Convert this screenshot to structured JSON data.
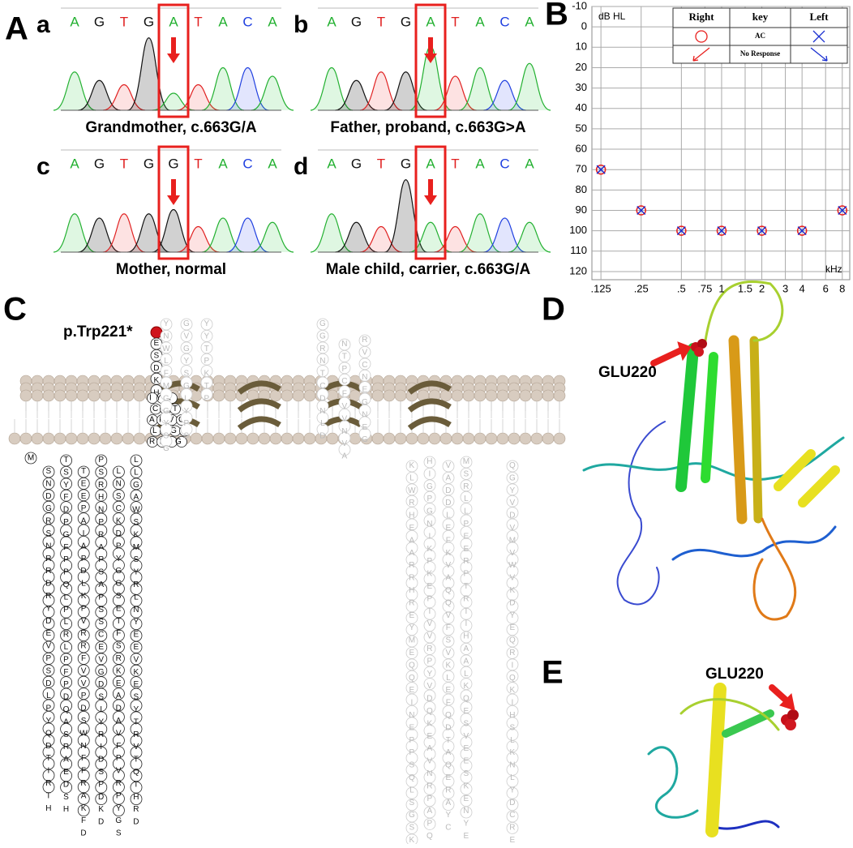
{
  "panel_labels": [
    "A",
    "B",
    "C",
    "D",
    "E"
  ],
  "sequencing": [
    {
      "label": "a",
      "bases": [
        "A",
        "G",
        "T",
        "G",
        "A",
        "T",
        "A",
        "C",
        "A"
      ],
      "caption": "Grandmother, c.663G/A"
    },
    {
      "label": "b",
      "bases": [
        "A",
        "G",
        "T",
        "G",
        "A",
        "T",
        "A",
        "C",
        "A"
      ],
      "caption": "Father, proband, c.663G>A"
    },
    {
      "label": "c",
      "bases": [
        "A",
        "G",
        "T",
        "G",
        "G",
        "T",
        "A",
        "C",
        "A"
      ],
      "caption": "Mother, normal"
    },
    {
      "label": "d",
      "bases": [
        "A",
        "G",
        "T",
        "G",
        "A",
        "T",
        "A",
        "C",
        "A"
      ],
      "caption": "Male child, carrier, c.663G/A"
    }
  ],
  "chart_data": {
    "type": "line",
    "y_label": "dB HL",
    "x_label": "kHz",
    "x_scale": "log",
    "y_inverted": true,
    "grid": true,
    "xlim": [
      0.107,
      9.1
    ],
    "xticks": [
      {
        "value": 0.125,
        "label": ".125"
      },
      {
        "value": 0.25,
        "label": ".25"
      },
      {
        "value": 0.5,
        "label": ".5"
      },
      {
        "value": 0.75,
        "label": ".75"
      },
      1,
      {
        "value": 1.5,
        "label": "1.5"
      },
      2,
      3,
      4,
      6,
      8
    ],
    "ylim": [
      -10,
      124
    ],
    "yticks": [
      -10,
      0,
      10,
      20,
      30,
      40,
      50,
      60,
      70,
      80,
      90,
      100,
      110,
      120
    ],
    "legend_key": "key",
    "legend_rows": [
      "AC",
      "No Response"
    ],
    "series": [
      {
        "name": "Right",
        "color": "#e8201e",
        "marker": "circle",
        "x": [
          0.125,
          0.25,
          0.5,
          1,
          2,
          4,
          8
        ],
        "values": [
          70,
          90,
          100,
          100,
          100,
          100,
          90
        ]
      },
      {
        "name": "Left",
        "color": "#1a2fd0",
        "marker": "x",
        "x": [
          0.125,
          0.25,
          0.5,
          1,
          2,
          4,
          8
        ],
        "values": [
          70,
          90,
          100,
          100,
          100,
          100,
          90
        ]
      }
    ]
  },
  "topology": {
    "variant": "p.Trp221*",
    "loop": "ESDKH",
    "membrane": [
      "IYA",
      "CVT",
      "AFVG",
      "LLGE",
      "RILG"
    ],
    "start": "M",
    "columns": [
      "SNDGRSNRRDRYDEVPSDLPYQDTIRTH",
      "TSYFDPGFPPQLPLRLPFPDQASRAEDSH",
      "TEEPAIAPDLKPVRRFVVPDSWNFFRAKFD",
      "PSRHNPRAPSAPSSCEVGDSIYRIDSPDKD",
      "LNSCKDPYGGSETFSRKEADAVFPVRPYGS",
      "LLGAWSKMSYRLNYEEVKESYTRVTQTHRD"
    ],
    "grey_columns": [
      "YNWLFMGGYSG",
      "GVGYSGLYPS",
      "YYTPKTP",
      "GGRNTCDNLD",
      "NTPCFVVNVA",
      "RVCNEGNEG",
      "KLWRHEAARRHREYMEQQEINEPPSQLSGSKRKM",
      "HIGPGNIKPKEPIVVRPYVDQKEAVNRPAPQE",
      "VADDLEFKVAQQVFSVKLEFQDTAQERAYC",
      "MSRLLPEERPTRIIHAALKQESVEESKENYE",
      "QGYVDVMVWVKDYEQRIQKIHSLKNLYDCREK"
    ]
  },
  "structure_label_d": "GLU220",
  "structure_label_e": "GLU220"
}
